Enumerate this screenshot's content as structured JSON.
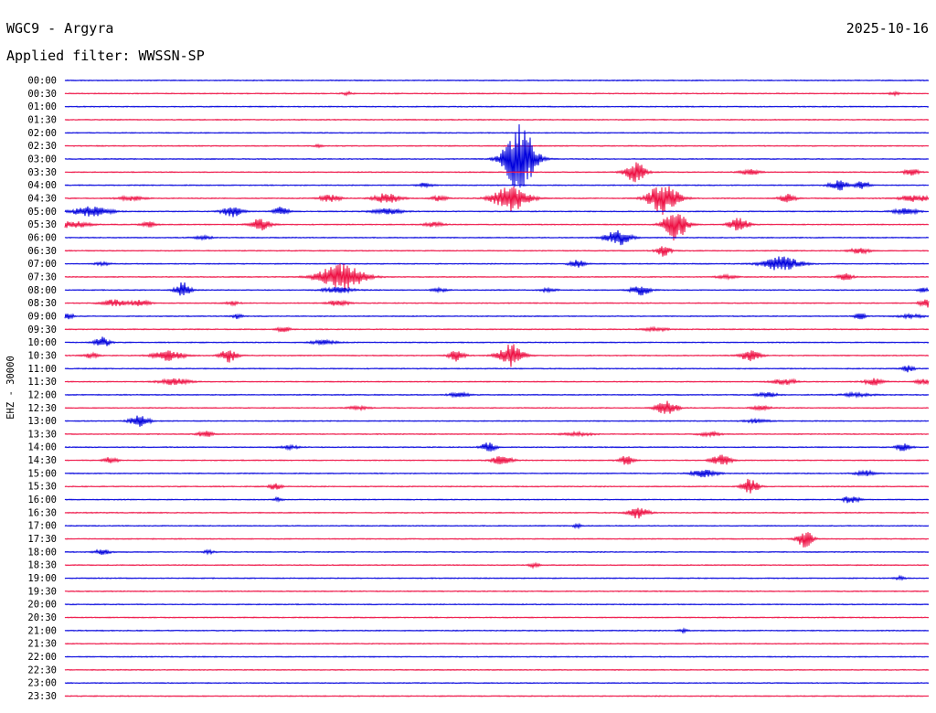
{
  "header": {
    "station_title": "WGC9 - Argyra",
    "date": "2025-10-16",
    "filter_text": "Applied filter: WWSSN-SP"
  },
  "colors": {
    "trace_a": "#0000dd",
    "trace_b": "#ee1144",
    "text": "#000000",
    "background": "#ffffff"
  },
  "chart_data": {
    "type": "line",
    "ylabel": "EHZ - 30000",
    "row_labels": [
      "00:00",
      "00:30",
      "01:00",
      "01:30",
      "02:00",
      "02:30",
      "03:00",
      "03:30",
      "04:00",
      "04:30",
      "05:00",
      "05:30",
      "06:00",
      "06:30",
      "07:00",
      "07:30",
      "08:00",
      "08:30",
      "09:00",
      "09:30",
      "10:00",
      "10:30",
      "11:00",
      "11:30",
      "12:00",
      "12:30",
      "13:00",
      "13:30",
      "14:00",
      "14:30",
      "15:00",
      "15:30",
      "16:00",
      "16:30",
      "17:00",
      "17:30",
      "18:00",
      "18:30",
      "19:00",
      "19:30",
      "20:00",
      "20:30",
      "21:00",
      "21:30",
      "22:00",
      "22:30",
      "23:00",
      "23:30"
    ],
    "row_colors": [
      "blue",
      "red"
    ],
    "x_range_minutes": [
      0,
      30
    ],
    "events": [
      {
        "row": "00:30",
        "minute": 9.8,
        "amplitude": 0.3,
        "duration": 0.4
      },
      {
        "row": "00:30",
        "minute": 28.8,
        "amplitude": 0.25,
        "duration": 0.4
      },
      {
        "row": "02:30",
        "minute": 8.8,
        "amplitude": 0.25,
        "duration": 0.3
      },
      {
        "row": "03:00",
        "minute": 15.8,
        "amplitude": 6.5,
        "duration": 1.2
      },
      {
        "row": "03:30",
        "minute": 19.8,
        "amplitude": 2.0,
        "duration": 0.8
      },
      {
        "row": "03:30",
        "minute": 23.8,
        "amplitude": 0.5,
        "duration": 0.8
      },
      {
        "row": "03:30",
        "minute": 29.4,
        "amplitude": 0.6,
        "duration": 0.6
      },
      {
        "row": "04:00",
        "minute": 12.5,
        "amplitude": 0.4,
        "duration": 0.6
      },
      {
        "row": "04:00",
        "minute": 26.9,
        "amplitude": 0.9,
        "duration": 0.8
      },
      {
        "row": "04:00",
        "minute": 27.7,
        "amplitude": 0.8,
        "duration": 0.5
      },
      {
        "row": "04:30",
        "minute": 2.3,
        "amplitude": 0.4,
        "duration": 1.0
      },
      {
        "row": "04:30",
        "minute": 9.2,
        "amplitude": 0.7,
        "duration": 0.8
      },
      {
        "row": "04:30",
        "minute": 11.2,
        "amplitude": 1.0,
        "duration": 1.0
      },
      {
        "row": "04:30",
        "minute": 13.0,
        "amplitude": 0.5,
        "duration": 0.6
      },
      {
        "row": "04:30",
        "minute": 15.5,
        "amplitude": 2.4,
        "duration": 1.4
      },
      {
        "row": "04:30",
        "minute": 20.8,
        "amplitude": 3.0,
        "duration": 1.2
      },
      {
        "row": "04:30",
        "minute": 25.1,
        "amplitude": 0.9,
        "duration": 0.6
      },
      {
        "row": "04:30",
        "minute": 29.5,
        "amplitude": 0.6,
        "duration": 1.2
      },
      {
        "row": "05:00",
        "minute": 0.9,
        "amplitude": 0.9,
        "duration": 1.5
      },
      {
        "row": "05:00",
        "minute": 5.8,
        "amplitude": 1.0,
        "duration": 0.8
      },
      {
        "row": "05:00",
        "minute": 7.5,
        "amplitude": 0.8,
        "duration": 0.6
      },
      {
        "row": "05:00",
        "minute": 11.2,
        "amplitude": 0.5,
        "duration": 1.2
      },
      {
        "row": "05:00",
        "minute": 29.2,
        "amplitude": 0.5,
        "duration": 1.0
      },
      {
        "row": "05:30",
        "minute": 0.2,
        "amplitude": 0.6,
        "duration": 1.5
      },
      {
        "row": "05:30",
        "minute": 2.9,
        "amplitude": 0.5,
        "duration": 0.6
      },
      {
        "row": "05:30",
        "minute": 6.8,
        "amplitude": 1.2,
        "duration": 0.8
      },
      {
        "row": "05:30",
        "minute": 12.8,
        "amplitude": 0.4,
        "duration": 0.8
      },
      {
        "row": "05:30",
        "minute": 21.2,
        "amplitude": 3.0,
        "duration": 0.9
      },
      {
        "row": "05:30",
        "minute": 23.4,
        "amplitude": 1.2,
        "duration": 0.8
      },
      {
        "row": "06:00",
        "minute": 19.2,
        "amplitude": 1.4,
        "duration": 1.0
      },
      {
        "row": "06:00",
        "minute": 4.8,
        "amplitude": 0.3,
        "duration": 0.8
      },
      {
        "row": "06:30",
        "minute": 20.8,
        "amplitude": 1.0,
        "duration": 0.6
      },
      {
        "row": "06:30",
        "minute": 27.6,
        "amplitude": 0.5,
        "duration": 0.8
      },
      {
        "row": "07:00",
        "minute": 17.8,
        "amplitude": 0.8,
        "duration": 0.6
      },
      {
        "row": "07:00",
        "minute": 24.9,
        "amplitude": 1.3,
        "duration": 1.5
      },
      {
        "row": "07:00",
        "minute": 1.3,
        "amplitude": 0.25,
        "duration": 0.6
      },
      {
        "row": "07:30",
        "minute": 9.6,
        "amplitude": 2.4,
        "duration": 1.8
      },
      {
        "row": "07:30",
        "minute": 27.1,
        "amplitude": 0.6,
        "duration": 0.6
      },
      {
        "row": "07:30",
        "minute": 23.0,
        "amplitude": 0.3,
        "duration": 0.8
      },
      {
        "row": "08:00",
        "minute": 4.1,
        "amplitude": 1.5,
        "duration": 0.6
      },
      {
        "row": "08:00",
        "minute": 9.5,
        "amplitude": 0.5,
        "duration": 1.2
      },
      {
        "row": "08:00",
        "minute": 13.0,
        "amplitude": 0.3,
        "duration": 0.6
      },
      {
        "row": "08:00",
        "minute": 16.8,
        "amplitude": 0.4,
        "duration": 0.6
      },
      {
        "row": "08:00",
        "minute": 20.0,
        "amplitude": 0.9,
        "duration": 0.8
      },
      {
        "row": "08:00",
        "minute": 29.8,
        "amplitude": 0.5,
        "duration": 0.4
      },
      {
        "row": "08:30",
        "minute": 1.7,
        "amplitude": 0.6,
        "duration": 1.0
      },
      {
        "row": "08:30",
        "minute": 2.6,
        "amplitude": 0.5,
        "duration": 0.8
      },
      {
        "row": "08:30",
        "minute": 9.5,
        "amplitude": 0.5,
        "duration": 0.8
      },
      {
        "row": "08:30",
        "minute": 5.8,
        "amplitude": 0.3,
        "duration": 0.6
      },
      {
        "row": "08:30",
        "minute": 29.9,
        "amplitude": 1.0,
        "duration": 0.5
      },
      {
        "row": "09:00",
        "minute": 0.1,
        "amplitude": 0.8,
        "duration": 0.4
      },
      {
        "row": "09:00",
        "minute": 6.0,
        "amplitude": 0.5,
        "duration": 0.4
      },
      {
        "row": "09:00",
        "minute": 27.6,
        "amplitude": 0.7,
        "duration": 0.4
      },
      {
        "row": "09:00",
        "minute": 29.4,
        "amplitude": 0.3,
        "duration": 1.0
      },
      {
        "row": "09:30",
        "minute": 7.6,
        "amplitude": 0.5,
        "duration": 0.5
      },
      {
        "row": "09:30",
        "minute": 20.5,
        "amplitude": 0.3,
        "duration": 1.0
      },
      {
        "row": "10:00",
        "minute": 1.3,
        "amplitude": 1.0,
        "duration": 0.6
      },
      {
        "row": "10:00",
        "minute": 9.0,
        "amplitude": 0.4,
        "duration": 1.0
      },
      {
        "row": "10:30",
        "minute": 0.9,
        "amplitude": 0.5,
        "duration": 0.6
      },
      {
        "row": "10:30",
        "minute": 3.6,
        "amplitude": 0.9,
        "duration": 1.2
      },
      {
        "row": "10:30",
        "minute": 5.7,
        "amplitude": 1.2,
        "duration": 0.7
      },
      {
        "row": "10:30",
        "minute": 13.6,
        "amplitude": 1.0,
        "duration": 0.6
      },
      {
        "row": "10:30",
        "minute": 15.5,
        "amplitude": 2.1,
        "duration": 1.0
      },
      {
        "row": "10:30",
        "minute": 23.8,
        "amplitude": 1.0,
        "duration": 0.8
      },
      {
        "row": "11:00",
        "minute": 29.3,
        "amplitude": 0.6,
        "duration": 0.5
      },
      {
        "row": "11:30",
        "minute": 3.8,
        "amplitude": 0.6,
        "duration": 1.2
      },
      {
        "row": "11:30",
        "minute": 25.0,
        "amplitude": 0.5,
        "duration": 1.0
      },
      {
        "row": "11:30",
        "minute": 28.1,
        "amplitude": 0.6,
        "duration": 0.8
      },
      {
        "row": "11:30",
        "minute": 29.8,
        "amplitude": 0.4,
        "duration": 0.6
      },
      {
        "row": "12:00",
        "minute": 13.7,
        "amplitude": 0.4,
        "duration": 0.8
      },
      {
        "row": "12:00",
        "minute": 24.4,
        "amplitude": 0.4,
        "duration": 0.8
      },
      {
        "row": "12:00",
        "minute": 27.5,
        "amplitude": 0.3,
        "duration": 1.2
      },
      {
        "row": "12:30",
        "minute": 20.9,
        "amplitude": 1.4,
        "duration": 0.8
      },
      {
        "row": "12:30",
        "minute": 10.2,
        "amplitude": 0.3,
        "duration": 0.8
      },
      {
        "row": "12:30",
        "minute": 24.2,
        "amplitude": 0.3,
        "duration": 0.8
      },
      {
        "row": "13:00",
        "minute": 2.6,
        "amplitude": 1.0,
        "duration": 0.8
      },
      {
        "row": "13:00",
        "minute": 24.0,
        "amplitude": 0.3,
        "duration": 1.0
      },
      {
        "row": "13:30",
        "minute": 4.9,
        "amplitude": 0.6,
        "duration": 0.6
      },
      {
        "row": "13:30",
        "minute": 17.8,
        "amplitude": 0.3,
        "duration": 1.2
      },
      {
        "row": "13:30",
        "minute": 22.4,
        "amplitude": 0.4,
        "duration": 0.8
      },
      {
        "row": "14:00",
        "minute": 14.7,
        "amplitude": 0.8,
        "duration": 0.6
      },
      {
        "row": "14:00",
        "minute": 29.1,
        "amplitude": 0.7,
        "duration": 0.6
      },
      {
        "row": "14:00",
        "minute": 7.8,
        "amplitude": 0.3,
        "duration": 0.8
      },
      {
        "row": "14:30",
        "minute": 1.6,
        "amplitude": 0.6,
        "duration": 0.6
      },
      {
        "row": "14:30",
        "minute": 15.2,
        "amplitude": 0.9,
        "duration": 0.8
      },
      {
        "row": "14:30",
        "minute": 19.5,
        "amplitude": 0.8,
        "duration": 0.6
      },
      {
        "row": "14:30",
        "minute": 22.8,
        "amplitude": 1.0,
        "duration": 0.8
      },
      {
        "row": "15:00",
        "minute": 22.2,
        "amplitude": 0.7,
        "duration": 1.0
      },
      {
        "row": "15:00",
        "minute": 27.8,
        "amplitude": 0.5,
        "duration": 0.8
      },
      {
        "row": "15:30",
        "minute": 7.3,
        "amplitude": 0.6,
        "duration": 0.5
      },
      {
        "row": "15:30",
        "minute": 23.8,
        "amplitude": 1.6,
        "duration": 0.6
      },
      {
        "row": "16:00",
        "minute": 27.3,
        "amplitude": 0.8,
        "duration": 0.6
      },
      {
        "row": "16:00",
        "minute": 7.4,
        "amplitude": 0.4,
        "duration": 0.3
      },
      {
        "row": "16:30",
        "minute": 19.9,
        "amplitude": 1.0,
        "duration": 0.8
      },
      {
        "row": "17:00",
        "minute": 17.8,
        "amplitude": 0.4,
        "duration": 0.3
      },
      {
        "row": "17:30",
        "minute": 25.7,
        "amplitude": 1.6,
        "duration": 0.6
      },
      {
        "row": "18:00",
        "minute": 1.3,
        "amplitude": 0.5,
        "duration": 0.6
      },
      {
        "row": "18:00",
        "minute": 5.0,
        "amplitude": 0.3,
        "duration": 0.4
      },
      {
        "row": "18:30",
        "minute": 16.3,
        "amplitude": 0.4,
        "duration": 0.4
      },
      {
        "row": "19:00",
        "minute": 29.0,
        "amplitude": 0.3,
        "duration": 0.4
      },
      {
        "row": "21:00",
        "minute": 21.5,
        "amplitude": 0.3,
        "duration": 0.4
      }
    ]
  }
}
